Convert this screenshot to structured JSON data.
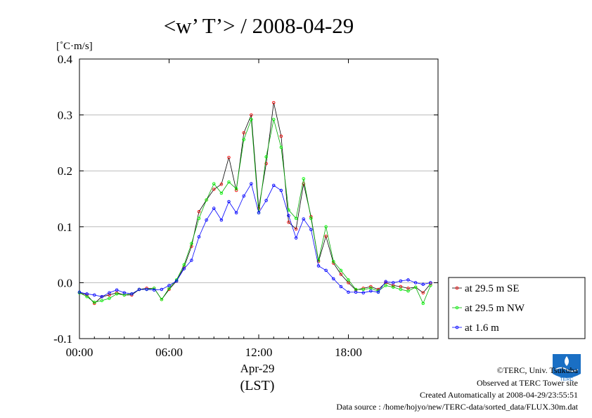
{
  "chart_data": {
    "type": "line",
    "title": "<w’ T’> / 2008-04-29",
    "ylabel": "[˚C·m/s]",
    "xlabel_date": "Apr-29",
    "xlabel": "(LST)",
    "ylim": [
      -0.1,
      0.4
    ],
    "yticks": [
      "0.4",
      "0.3",
      "0.2",
      "0.1",
      "0.0",
      "-0.1"
    ],
    "ytick_values": [
      0.4,
      0.3,
      0.2,
      0.1,
      0.0,
      -0.1
    ],
    "xlim_hours": [
      0,
      24
    ],
    "xticks": [
      "00:00",
      "06:00",
      "12:00",
      "18:00"
    ],
    "xtick_hours": [
      0,
      6,
      12,
      18
    ],
    "grid": true,
    "legend_position": "right, outside plot",
    "x_hours": [
      0.0,
      0.5,
      1.0,
      1.5,
      2.0,
      2.5,
      3.0,
      3.5,
      4.0,
      4.5,
      5.0,
      5.5,
      6.0,
      6.5,
      7.0,
      7.5,
      8.0,
      8.5,
      9.0,
      9.5,
      10.0,
      10.5,
      11.0,
      11.5,
      12.0,
      12.5,
      13.0,
      13.5,
      14.0,
      14.5,
      15.0,
      15.5,
      16.0,
      16.5,
      17.0,
      17.5,
      18.0,
      18.5,
      19.0,
      19.5,
      20.0,
      20.5,
      21.0,
      21.5,
      22.0,
      22.5,
      23.0,
      23.5
    ],
    "series": [
      {
        "name": "at 29.5 m SE",
        "color": "#ff0000",
        "line_color": "#000000",
        "values": [
          -0.018,
          -0.022,
          -0.037,
          -0.025,
          -0.022,
          -0.018,
          -0.022,
          -0.022,
          -0.012,
          -0.01,
          -0.01,
          -0.03,
          -0.012,
          0.003,
          0.028,
          0.065,
          0.127,
          0.148,
          0.167,
          0.176,
          0.224,
          0.165,
          0.268,
          0.3,
          0.133,
          0.213,
          0.322,
          0.262,
          0.108,
          0.096,
          0.177,
          0.118,
          0.038,
          0.083,
          0.035,
          0.015,
          0.0,
          -0.013,
          -0.01,
          -0.007,
          -0.012,
          0.0,
          -0.005,
          -0.007,
          -0.01,
          -0.008,
          -0.018,
          -0.002
        ]
      },
      {
        "name": "at 29.5 m NW",
        "color": "#00ff00",
        "line_color": "#00aa00",
        "values": [
          -0.018,
          -0.025,
          -0.035,
          -0.032,
          -0.028,
          -0.02,
          -0.022,
          -0.02,
          -0.012,
          -0.012,
          -0.01,
          -0.03,
          -0.01,
          0.005,
          0.032,
          0.07,
          0.115,
          0.148,
          0.177,
          0.16,
          0.18,
          0.168,
          0.256,
          0.292,
          0.125,
          0.225,
          0.292,
          0.242,
          0.13,
          0.115,
          0.186,
          0.115,
          0.04,
          0.1,
          0.038,
          0.022,
          0.005,
          -0.012,
          -0.012,
          -0.01,
          -0.015,
          -0.005,
          -0.008,
          -0.012,
          -0.015,
          -0.008,
          -0.037,
          -0.005
        ]
      },
      {
        "name": "at 1.6 m",
        "color": "#0000ff",
        "line_color": "#0000ff",
        "values": [
          -0.017,
          -0.02,
          -0.022,
          -0.025,
          -0.018,
          -0.013,
          -0.018,
          -0.02,
          -0.012,
          -0.012,
          -0.013,
          -0.012,
          -0.005,
          0.003,
          0.025,
          0.04,
          0.082,
          0.112,
          0.133,
          0.112,
          0.145,
          0.125,
          0.155,
          0.177,
          0.125,
          0.147,
          0.174,
          0.165,
          0.12,
          0.08,
          0.114,
          0.095,
          0.03,
          0.022,
          0.007,
          -0.007,
          -0.017,
          -0.017,
          -0.018,
          -0.015,
          -0.017,
          0.002,
          0.0,
          0.003,
          0.005,
          0.0,
          -0.003,
          0.0
        ]
      }
    ]
  },
  "footer": {
    "copyright": "©TERC, Univ. Tsukuba",
    "observed": "Observed at TERC Tower site",
    "created": "Created Automatically at 2008-04-29/23:55:51",
    "source": "Data source : /home/hojyo/new/TERC-data/sorted_data/FLUX.30m.dat"
  },
  "logo": {
    "text": "TERC",
    "color": "#1a6fc4"
  }
}
